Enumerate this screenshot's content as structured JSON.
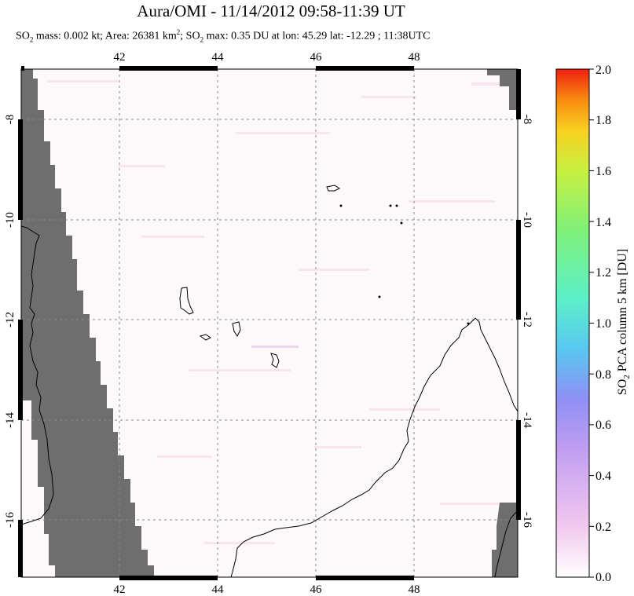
{
  "title": "Aura/OMI - 11/14/2012 09:58-11:39 UT",
  "subtitle": {
    "so2_prefix": "SO",
    "so2_sub": "2",
    "mass_text": " mass: 0.002 kt; Area: 26381 km",
    "area_sup": "2",
    "sep": "; SO",
    "so2_sub_2": "2",
    "max_text": " max: 0.35 DU at lon: 45.29 lat: -12.29 ; 11:38UTC"
  },
  "map": {
    "lon_ticks": [
      "42",
      "44",
      "46",
      "48"
    ],
    "lat_ticks": [
      "-8",
      "-10",
      "-12",
      "-14",
      "-16"
    ],
    "land_color": "#6e6e6e",
    "background_color": "#fdf8fa"
  },
  "colorbar": {
    "label": "SO2 PCA column 5 km [DU]",
    "label_prefix": "SO",
    "label_sub": "2",
    "label_rest": " PCA column 5 km [DU]",
    "ticks": [
      "2.0",
      "1.8",
      "1.6",
      "1.4",
      "1.2",
      "1.0",
      "0.8",
      "0.6",
      "0.4",
      "0.2",
      "0.0"
    ],
    "colors": [
      "#ffffff",
      "#f2c8ee",
      "#c29ef0",
      "#8f8ff5",
      "#58c8f0",
      "#5cf0c8",
      "#7ef07a",
      "#c8f040",
      "#f8d020",
      "#f88a10",
      "#f02010"
    ]
  }
}
